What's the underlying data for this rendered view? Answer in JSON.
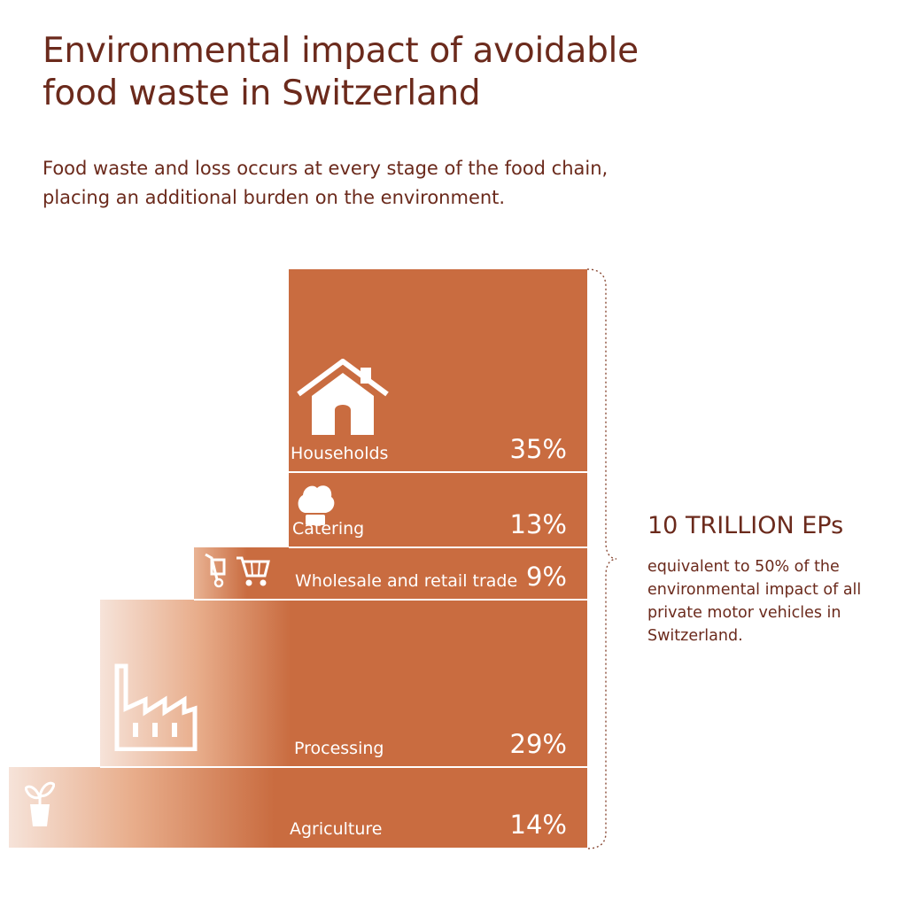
{
  "title_lines": [
    "Environmental impact of avoidable",
    "food waste in Switzerland"
  ],
  "subtitle_lines": [
    "Food waste and loss occurs at every stage of the food chain,",
    "placing an additional burden on the environment."
  ],
  "colors": {
    "bar": "#c96c40",
    "title": "#6b2a1c",
    "divider": "#ffffff"
  },
  "total": {
    "headline": "10 TRILLION EPs",
    "note_lines": [
      "equivalent to 50% of the",
      "environmental impact of all",
      "private motor vehicles in",
      "Switzerland."
    ]
  },
  "chart_data": {
    "type": "bar",
    "orientation": "stacked-steps",
    "title": "Environmental impact of avoidable food waste in Switzerland",
    "unit": "%",
    "total_label": "10 TRILLION EPs",
    "categories": [
      "Agriculture",
      "Processing",
      "Wholesale and retail trade",
      "Catering",
      "Households"
    ],
    "values": [
      14,
      29,
      9,
      13,
      35
    ],
    "value_labels": [
      "14%",
      "29%",
      "9%",
      "13%",
      "35%"
    ],
    "icons": [
      "plant-icon",
      "factory-icon",
      "shopping-cart-icon",
      "chef-hat-icon",
      "house-icon"
    ]
  }
}
